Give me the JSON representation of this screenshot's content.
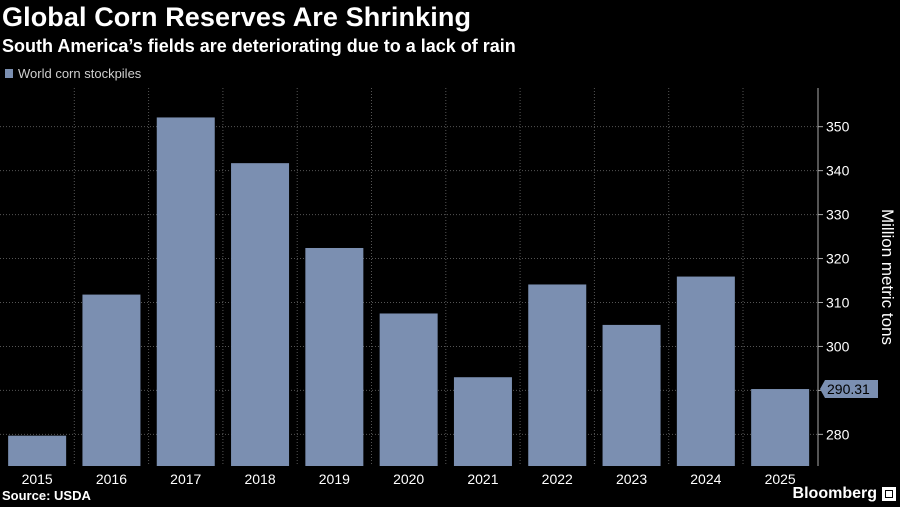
{
  "header": {
    "title": "Global Corn Reserves Are Shrinking",
    "subtitle": "South America’s fields are deteriorating due to a lack of rain"
  },
  "footer": {
    "source": "Source: USDA",
    "brand": "Bloomberg"
  },
  "colors": {
    "bar": "#7b8fb1",
    "grid": "#555555",
    "background": "#000000"
  },
  "chart_data": {
    "type": "bar",
    "title": "Global Corn Reserves Are Shrinking",
    "subtitle": "South America’s fields are deteriorating due to a lack of rain",
    "categories": [
      "2015",
      "2016",
      "2017",
      "2018",
      "2019",
      "2020",
      "2021",
      "2022",
      "2023",
      "2024",
      "2025"
    ],
    "series": [
      {
        "name": "World corn stockpiles",
        "values": [
          279.7,
          311.8,
          352.1,
          341.7,
          322.4,
          307.5,
          293.0,
          314.1,
          304.9,
          315.9,
          290.31
        ]
      }
    ],
    "ylabel": "Million metric tons",
    "xlabel": "",
    "ylim": [
      272.8,
      358.8
    ],
    "yticks": [
      280,
      290,
      300,
      310,
      320,
      330,
      340,
      350
    ],
    "ytick_labels": [
      "280",
      "",
      "300",
      "310",
      "320",
      "330",
      "340",
      "350"
    ],
    "y_axis_side": "right",
    "grid": true,
    "legend_position": "top-left",
    "annotation": {
      "category": "2025",
      "label": "290.31"
    }
  }
}
